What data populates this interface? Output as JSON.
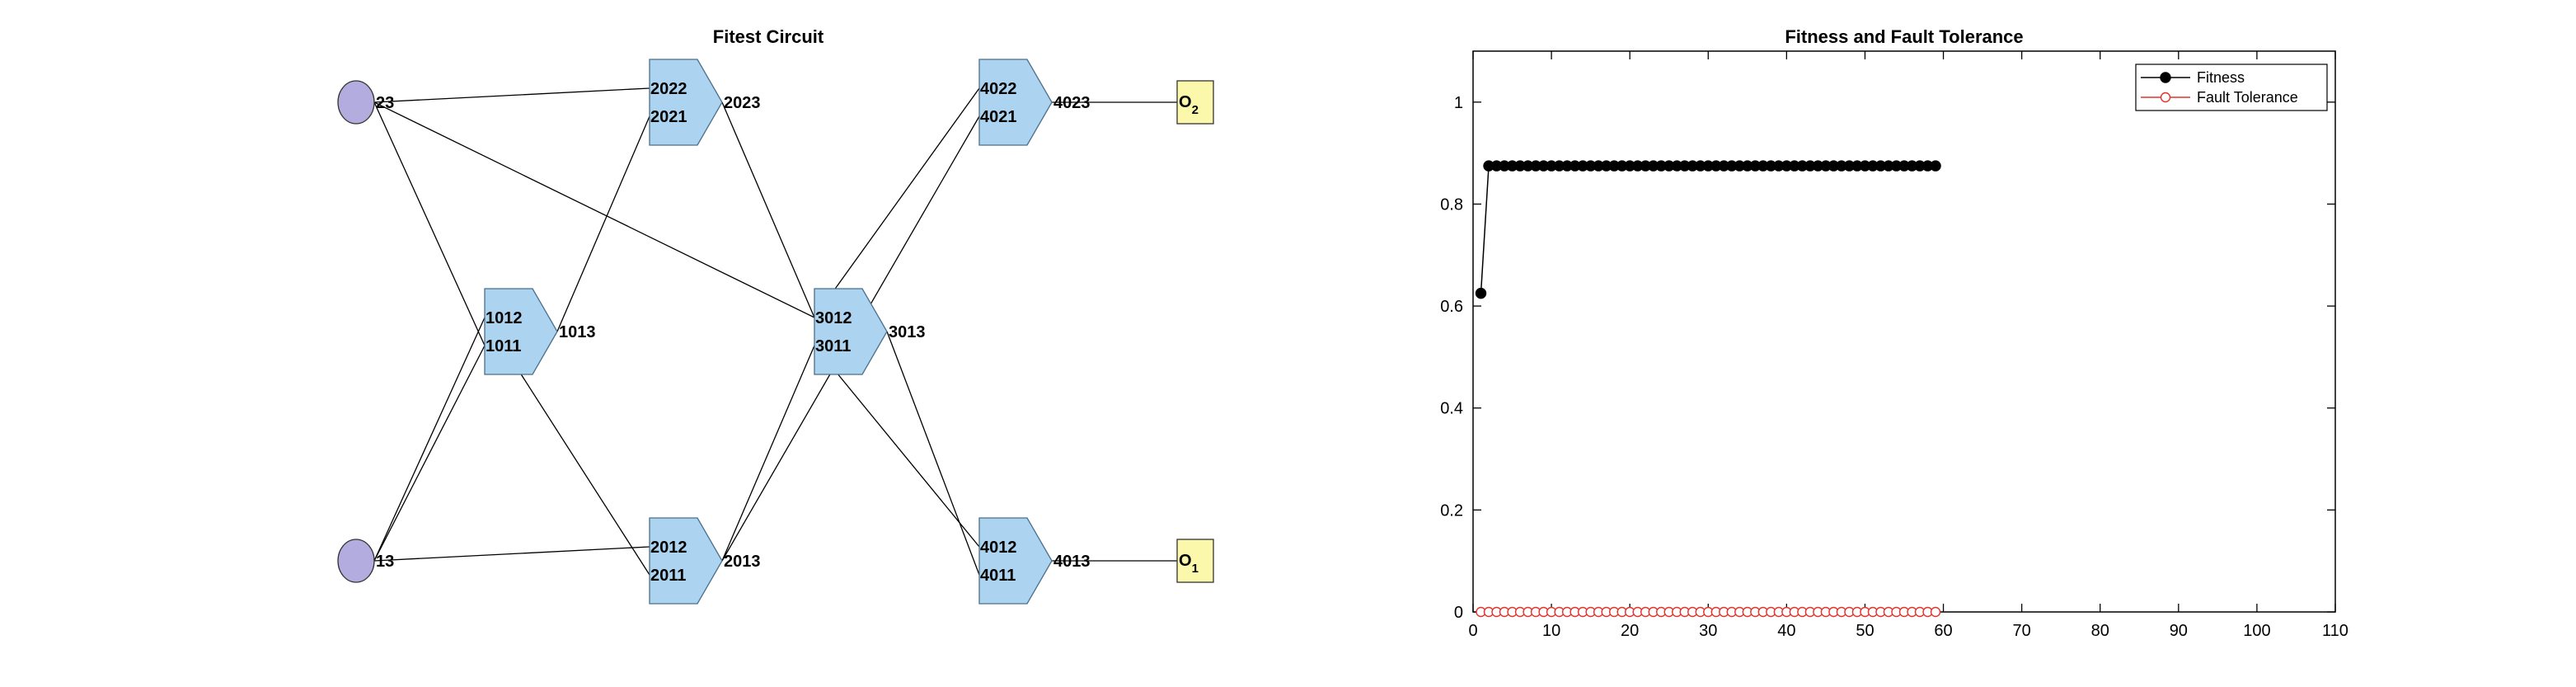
{
  "circuit": {
    "title": "Fitest Circuit",
    "inputs": [
      {
        "id": "in-23",
        "label": "23"
      },
      {
        "id": "in-13",
        "label": "13"
      }
    ],
    "gates": [
      {
        "id": "g1",
        "in_top": "1012",
        "in_bottom": "1011",
        "out": "1013"
      },
      {
        "id": "g2a",
        "in_top": "2022",
        "in_bottom": "2021",
        "out": "2023"
      },
      {
        "id": "g2b",
        "in_top": "2012",
        "in_bottom": "2011",
        "out": "2013"
      },
      {
        "id": "g3",
        "in_top": "3012",
        "in_bottom": "3011",
        "out": "3013"
      },
      {
        "id": "g4a",
        "in_top": "4022",
        "in_bottom": "4021",
        "out": "4023"
      },
      {
        "id": "g4b",
        "in_top": "4012",
        "in_bottom": "4011",
        "out": "4013"
      }
    ],
    "outputs": [
      {
        "id": "out-2",
        "base": "O",
        "sub": "2"
      },
      {
        "id": "out-1",
        "base": "O",
        "sub": "1"
      }
    ],
    "colors": {
      "input_fill": "#b3acdf",
      "gate_fill": "#acd3ef",
      "output_fill": "#fbf7ab",
      "wire": "#000000"
    }
  },
  "chart_data": {
    "type": "scatter",
    "title": "Fitness and Fault Tolerance",
    "xlabel": "",
    "ylabel": "",
    "xlim": [
      0,
      110
    ],
    "ylim": [
      0,
      1.1
    ],
    "xticks": [
      0,
      10,
      20,
      30,
      40,
      50,
      60,
      70,
      80,
      90,
      100,
      110
    ],
    "yticks": [
      0,
      0.2,
      0.4,
      0.6,
      0.8,
      1
    ],
    "legend_position": "top-right",
    "series": [
      {
        "name": "Fitness",
        "color": "#000000",
        "marker": "filled-circle",
        "line": true,
        "x": [
          1,
          2,
          3,
          4,
          5,
          6,
          7,
          8,
          9,
          10,
          11,
          12,
          13,
          14,
          15,
          16,
          17,
          18,
          19,
          20,
          21,
          22,
          23,
          24,
          25,
          26,
          27,
          28,
          29,
          30,
          31,
          32,
          33,
          34,
          35,
          36,
          37,
          38,
          39,
          40,
          41,
          42,
          43,
          44,
          45,
          46,
          47,
          48,
          49,
          50,
          51,
          52,
          53,
          54,
          55,
          56,
          57,
          58,
          59
        ],
        "y": [
          0.625,
          0.875,
          0.875,
          0.875,
          0.875,
          0.875,
          0.875,
          0.875,
          0.875,
          0.875,
          0.875,
          0.875,
          0.875,
          0.875,
          0.875,
          0.875,
          0.875,
          0.875,
          0.875,
          0.875,
          0.875,
          0.875,
          0.875,
          0.875,
          0.875,
          0.875,
          0.875,
          0.875,
          0.875,
          0.875,
          0.875,
          0.875,
          0.875,
          0.875,
          0.875,
          0.875,
          0.875,
          0.875,
          0.875,
          0.875,
          0.875,
          0.875,
          0.875,
          0.875,
          0.875,
          0.875,
          0.875,
          0.875,
          0.875,
          0.875,
          0.875,
          0.875,
          0.875,
          0.875,
          0.875,
          0.875,
          0.875,
          0.875,
          0.875
        ]
      },
      {
        "name": "Fault Tolerance",
        "color": "#e0342c",
        "marker": "open-circle",
        "line": true,
        "x": [
          1,
          2,
          3,
          4,
          5,
          6,
          7,
          8,
          9,
          10,
          11,
          12,
          13,
          14,
          15,
          16,
          17,
          18,
          19,
          20,
          21,
          22,
          23,
          24,
          25,
          26,
          27,
          28,
          29,
          30,
          31,
          32,
          33,
          34,
          35,
          36,
          37,
          38,
          39,
          40,
          41,
          42,
          43,
          44,
          45,
          46,
          47,
          48,
          49,
          50,
          51,
          52,
          53,
          54,
          55,
          56,
          57,
          58,
          59
        ],
        "y": [
          0,
          0,
          0,
          0,
          0,
          0,
          0,
          0,
          0,
          0,
          0,
          0,
          0,
          0,
          0,
          0,
          0,
          0,
          0,
          0,
          0,
          0,
          0,
          0,
          0,
          0,
          0,
          0,
          0,
          0,
          0,
          0,
          0,
          0,
          0,
          0,
          0,
          0,
          0,
          0,
          0,
          0,
          0,
          0,
          0,
          0,
          0,
          0,
          0,
          0,
          0,
          0,
          0,
          0,
          0,
          0,
          0,
          0,
          0
        ]
      }
    ]
  }
}
